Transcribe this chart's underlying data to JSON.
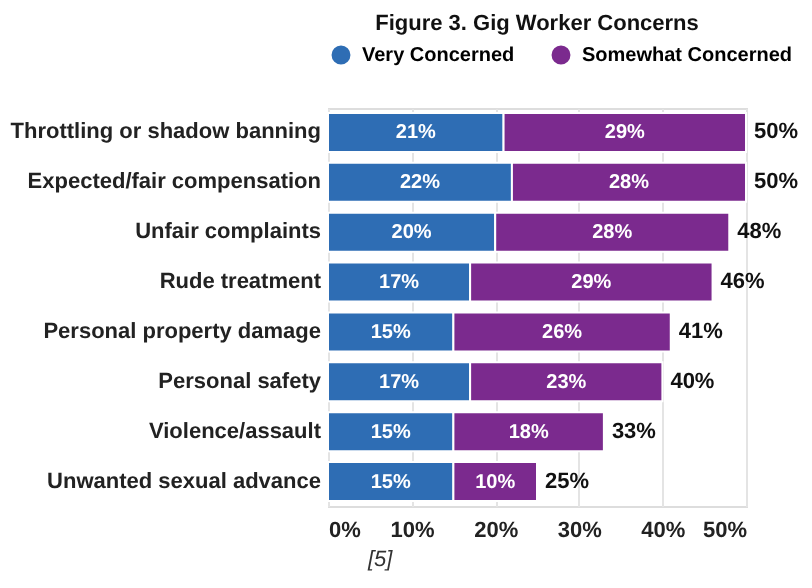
{
  "chart_data": {
    "type": "bar",
    "orientation": "horizontal",
    "stacked": true,
    "title": "Figure 3. Gig Worker Concerns",
    "categories": [
      "Throttling or shadow banning",
      "Expected/fair compensation",
      "Unfair complaints",
      "Rude treatment",
      "Personal property damage",
      "Personal safety",
      "Violence/assault",
      "Unwanted sexual advance"
    ],
    "series": [
      {
        "name": "Very Concerned",
        "color": "#2e6db4",
        "values": [
          21,
          22,
          20,
          17,
          15,
          17,
          15,
          15
        ],
        "value_labels": [
          "21%",
          "22%",
          "20%",
          "17%",
          "15%",
          "17%",
          "15%",
          "15%"
        ]
      },
      {
        "name": "Somewhat Concerned",
        "color": "#7b2a8e",
        "values": [
          29,
          28,
          28,
          29,
          26,
          23,
          18,
          10
        ],
        "value_labels": [
          "29%",
          "28%",
          "28%",
          "29%",
          "26%",
          "23%",
          "18%",
          "10%"
        ]
      }
    ],
    "totals": [
      "50%",
      "50%",
      "48%",
      "46%",
      "41%",
      "40%",
      "33%",
      "25%"
    ],
    "xlim": [
      0,
      50
    ],
    "xticks": [
      {
        "value": 0,
        "label": "0%"
      },
      {
        "value": 10,
        "label": "10%"
      },
      {
        "value": 20,
        "label": "20%"
      },
      {
        "value": 30,
        "label": "30%"
      },
      {
        "value": 40,
        "label": "40%"
      },
      {
        "value": 50,
        "label": "50%"
      }
    ],
    "grid": "x",
    "legend": "top",
    "annotations": [
      "[5]"
    ]
  }
}
